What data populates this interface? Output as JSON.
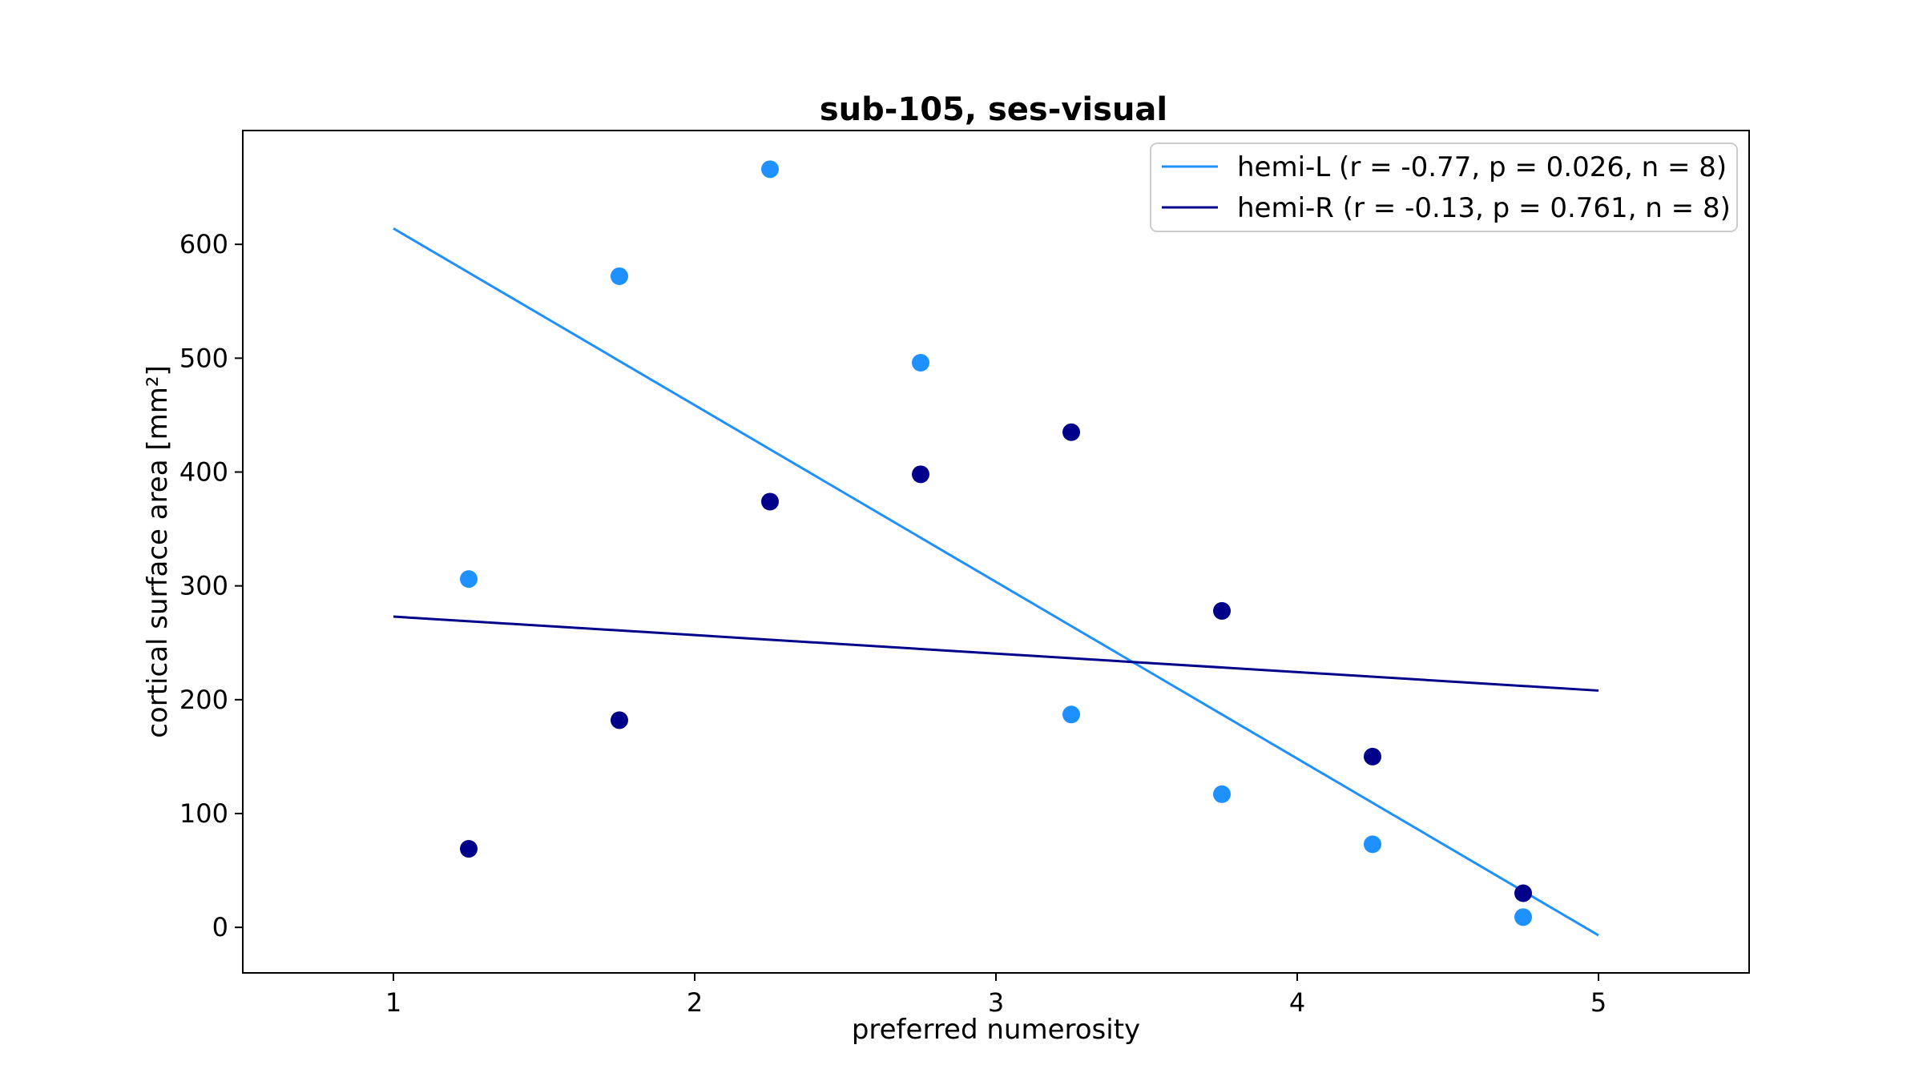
{
  "chart_data": {
    "type": "scatter",
    "title": "sub-105, ses-visual",
    "xlabel": "preferred numerosity",
    "ylabel": "cortical surface area [mm²]",
    "xlim": [
      0.5,
      5.5
    ],
    "ylim": [
      -40,
      700
    ],
    "xticks": [
      1,
      2,
      3,
      4,
      5
    ],
    "yticks": [
      0,
      100,
      200,
      300,
      400,
      500,
      600
    ],
    "grid": false,
    "legend_position": "top-right",
    "series": [
      {
        "name": "hemi-L (r = -0.77, p = 0.026, n = 8)",
        "color": "#1e90ff",
        "x": [
          1.25,
          1.75,
          2.25,
          2.75,
          3.25,
          3.75,
          4.25,
          4.75
        ],
        "y": [
          306,
          572,
          666,
          496,
          187,
          117,
          73,
          9
        ],
        "fit": {
          "x": [
            1,
            5
          ],
          "y": [
            614,
            -7
          ]
        }
      },
      {
        "name": "hemi-R (r = -0.13, p = 0.761, n = 8)",
        "color": "#00008b",
        "x": [
          1.25,
          1.75,
          2.25,
          2.75,
          3.25,
          3.75,
          4.25,
          4.75
        ],
        "y": [
          69,
          182,
          374,
          398,
          435,
          278,
          150,
          30
        ],
        "fit": {
          "x": [
            1,
            5
          ],
          "y": [
            273,
            208
          ]
        }
      }
    ]
  }
}
